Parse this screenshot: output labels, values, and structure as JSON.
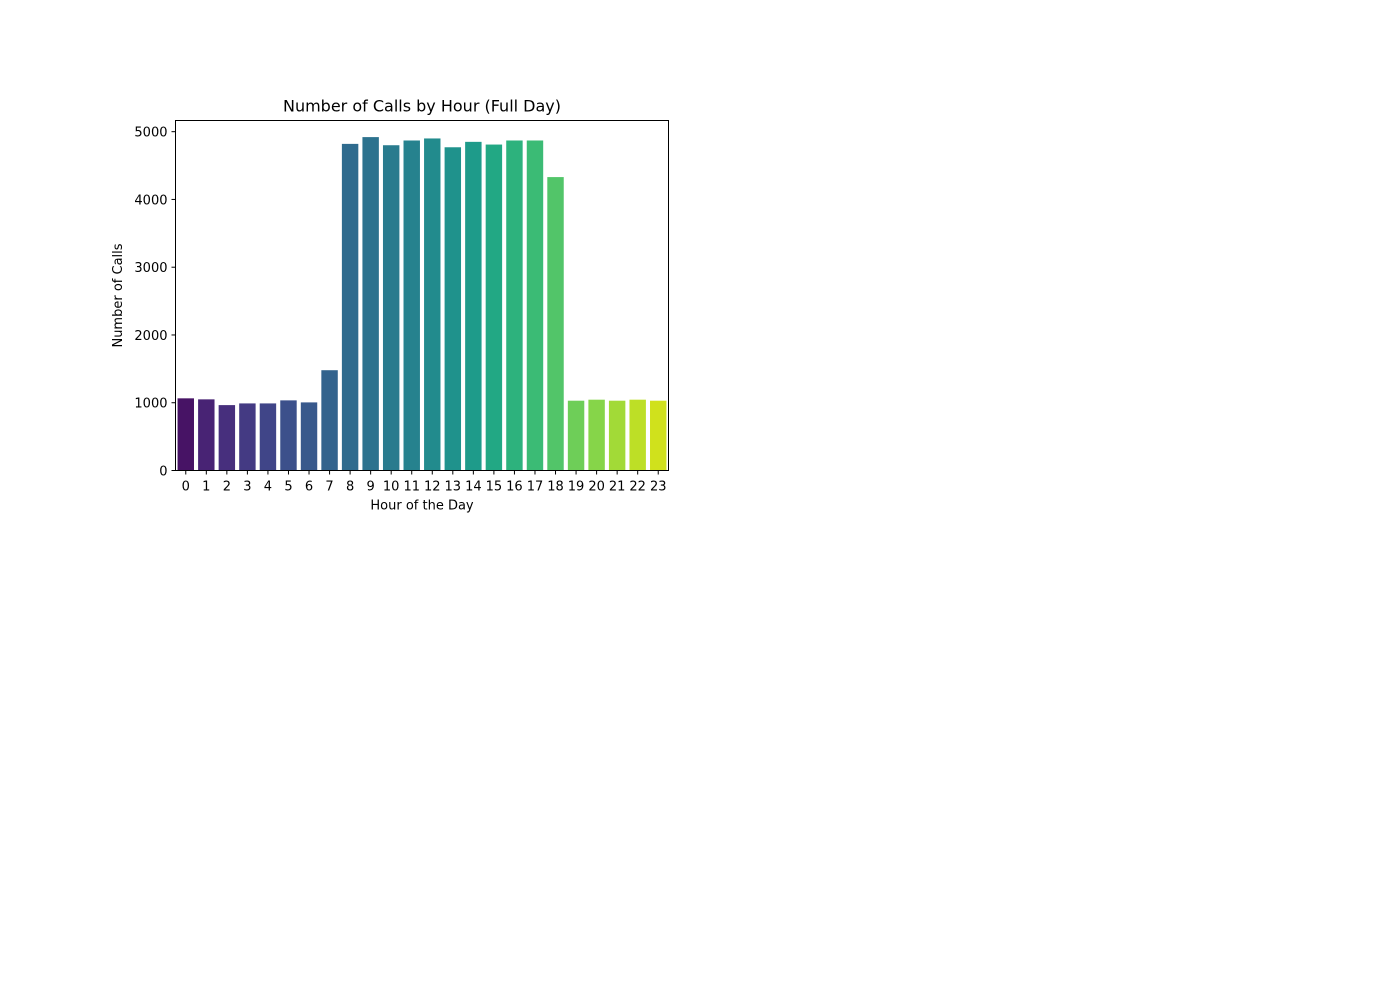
{
  "chart_data": {
    "type": "bar",
    "title": "Number of Calls by Hour (Full Day)",
    "xlabel": "Hour of the Day",
    "ylabel": "Number of Calls",
    "categories": [
      "0",
      "1",
      "2",
      "3",
      "4",
      "5",
      "6",
      "7",
      "8",
      "9",
      "10",
      "11",
      "12",
      "13",
      "14",
      "15",
      "16",
      "17",
      "18",
      "19",
      "20",
      "21",
      "22",
      "23"
    ],
    "values": [
      1065,
      1050,
      965,
      990,
      990,
      1035,
      1005,
      1480,
      4820,
      4920,
      4800,
      4870,
      4900,
      4770,
      4850,
      4810,
      4870,
      4870,
      4330,
      1030,
      1045,
      1030,
      1045,
      1030
    ],
    "colors": [
      "#471365",
      "#482374",
      "#472f7d",
      "#443a83",
      "#404588",
      "#3c508b",
      "#38598c",
      "#33638d",
      "#2f6b8e",
      "#2c728e",
      "#297b8e",
      "#26828e",
      "#228b8d",
      "#1f928c",
      "#1e9b8a",
      "#22a884",
      "#2db27d",
      "#3bbb75",
      "#52c569",
      "#6ece58",
      "#86d549",
      "#a2da37",
      "#bddf26",
      "#d0e11c"
    ],
    "yticks": [
      0,
      1000,
      2000,
      3000,
      4000,
      5000
    ],
    "ylim": [
      0,
      5165
    ],
    "grid": false,
    "legend": "none"
  }
}
